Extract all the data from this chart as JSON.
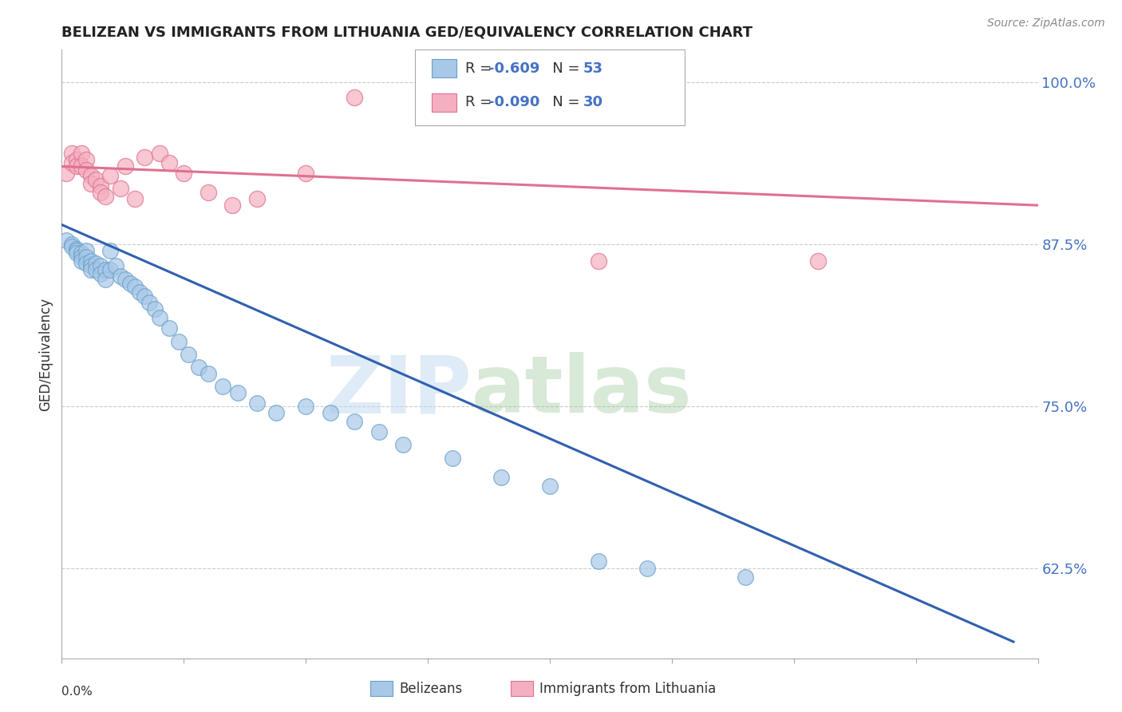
{
  "title": "BELIZEAN VS IMMIGRANTS FROM LITHUANIA GED/EQUIVALENCY CORRELATION CHART",
  "source": "Source: ZipAtlas.com",
  "ylabel": "GED/Equivalency",
  "xmin": 0.0,
  "xmax": 0.2,
  "ymin": 0.555,
  "ymax": 1.025,
  "yticks": [
    0.625,
    0.75,
    0.875,
    1.0
  ],
  "ytick_labels": [
    "62.5%",
    "75.0%",
    "87.5%",
    "100.0%"
  ],
  "watermark_zip": "ZIP",
  "watermark_atlas": "atlas",
  "belizean_color": "#a8c8e8",
  "belizean_edge": "#6aa0c8",
  "lithuania_color": "#f4b0c0",
  "lithuania_edge": "#e07090",
  "trend_blue": "#3060b0",
  "trend_pink": "#e07090",
  "blue_scatter_x": [
    0.001,
    0.002,
    0.002,
    0.003,
    0.003,
    0.003,
    0.004,
    0.004,
    0.004,
    0.005,
    0.005,
    0.005,
    0.006,
    0.006,
    0.006,
    0.007,
    0.007,
    0.008,
    0.008,
    0.009,
    0.009,
    0.01,
    0.01,
    0.011,
    0.012,
    0.013,
    0.014,
    0.015,
    0.016,
    0.017,
    0.018,
    0.019,
    0.02,
    0.022,
    0.024,
    0.026,
    0.028,
    0.03,
    0.033,
    0.036,
    0.04,
    0.044,
    0.05,
    0.055,
    0.06,
    0.065,
    0.07,
    0.08,
    0.09,
    0.1,
    0.11,
    0.12,
    0.14
  ],
  "blue_scatter_y": [
    0.878,
    0.875,
    0.873,
    0.871,
    0.87,
    0.868,
    0.868,
    0.865,
    0.862,
    0.87,
    0.865,
    0.86,
    0.862,
    0.858,
    0.855,
    0.86,
    0.855,
    0.858,
    0.852,
    0.855,
    0.848,
    0.87,
    0.855,
    0.858,
    0.85,
    0.848,
    0.845,
    0.842,
    0.838,
    0.835,
    0.83,
    0.825,
    0.818,
    0.81,
    0.8,
    0.79,
    0.78,
    0.775,
    0.765,
    0.76,
    0.752,
    0.745,
    0.75,
    0.745,
    0.738,
    0.73,
    0.72,
    0.71,
    0.695,
    0.688,
    0.63,
    0.625,
    0.618
  ],
  "pink_scatter_x": [
    0.001,
    0.002,
    0.002,
    0.003,
    0.003,
    0.004,
    0.004,
    0.005,
    0.005,
    0.006,
    0.006,
    0.007,
    0.008,
    0.008,
    0.009,
    0.01,
    0.012,
    0.013,
    0.015,
    0.017,
    0.02,
    0.022,
    0.025,
    0.03,
    0.035,
    0.04,
    0.05,
    0.06,
    0.11,
    0.155
  ],
  "pink_scatter_y": [
    0.93,
    0.945,
    0.938,
    0.94,
    0.935,
    0.945,
    0.935,
    0.94,
    0.932,
    0.928,
    0.922,
    0.925,
    0.92,
    0.915,
    0.912,
    0.928,
    0.918,
    0.935,
    0.91,
    0.942,
    0.945,
    0.938,
    0.93,
    0.915,
    0.905,
    0.91,
    0.93,
    0.988,
    0.862,
    0.862
  ],
  "blue_trend_x": [
    0.0,
    0.195
  ],
  "blue_trend_y": [
    0.89,
    0.568
  ],
  "pink_trend_x": [
    0.0,
    0.2
  ],
  "pink_trend_y": [
    0.935,
    0.905
  ],
  "xtick_positions": [
    0.0,
    0.025,
    0.05,
    0.075,
    0.1,
    0.125,
    0.15,
    0.175,
    0.2
  ],
  "legend_blue_label_r": "R = ",
  "legend_blue_r_val": "-0.609",
  "legend_blue_label_n": "   N = ",
  "legend_blue_n_val": "53",
  "legend_pink_label_r": "R = ",
  "legend_pink_r_val": "-0.090",
  "legend_pink_label_n": "   N = ",
  "legend_pink_n_val": "30"
}
